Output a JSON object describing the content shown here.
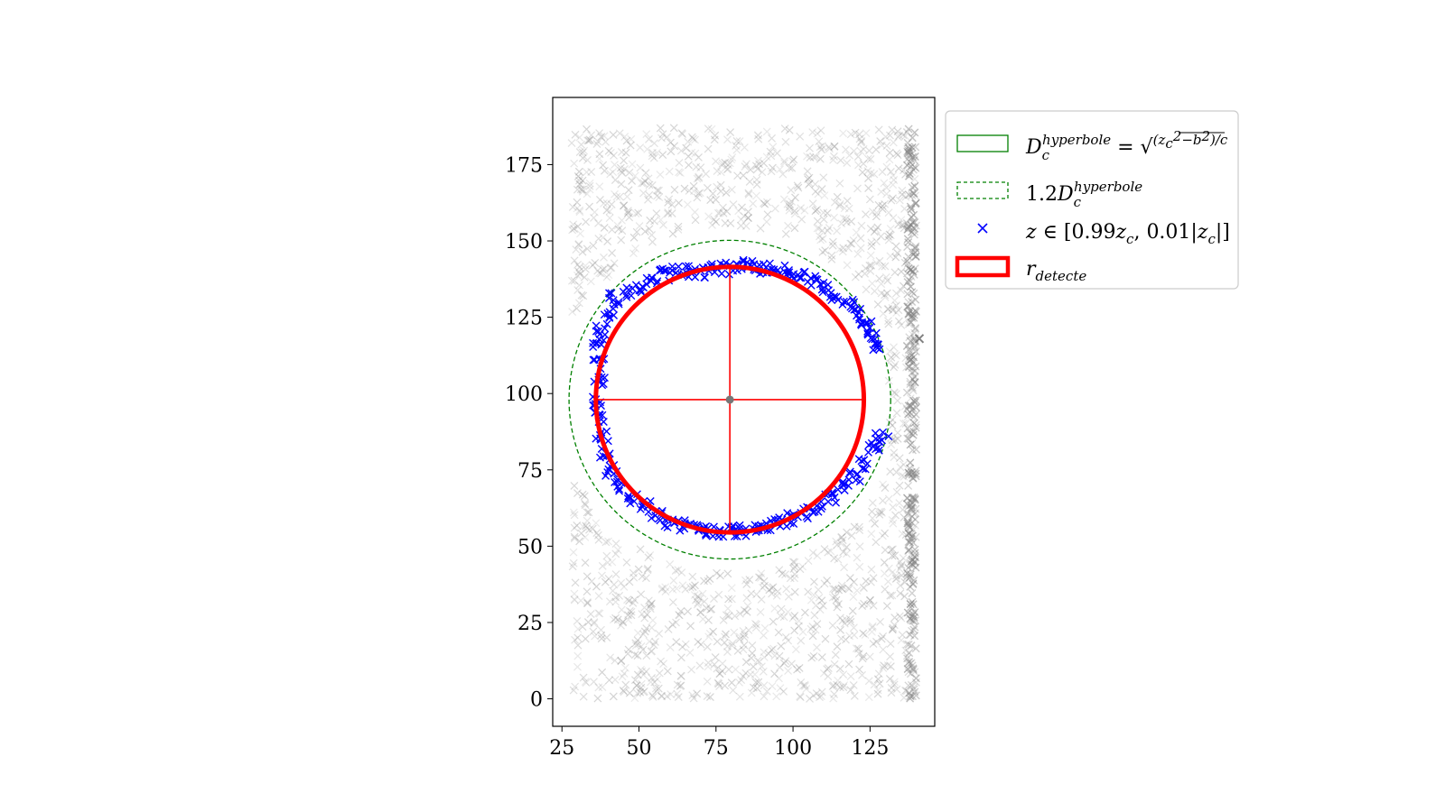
{
  "chart_data": {
    "type": "scatter",
    "title": "",
    "xlabel": "",
    "ylabel": "",
    "xlim": [
      22,
      146
    ],
    "ylim": [
      -9,
      197
    ],
    "xticks": [
      25,
      50,
      75,
      100,
      125
    ],
    "yticks": [
      0,
      25,
      50,
      75,
      100,
      125,
      150,
      175
    ],
    "grid": false,
    "legend_position": "outside-right-top",
    "aspect": "equal",
    "center": [
      79.5,
      98.0
    ],
    "detected_radius": 43.5,
    "hyperbola_radius": 43.5,
    "hyperbola_radius_factor_dashed": 1.2,
    "colors": {
      "background_points": "#808080",
      "selected_points": "#0000ff",
      "detected_circle": "#ff0000",
      "hyperbola_circle": "#008000"
    },
    "series": [
      {
        "name": "D_c^hyperbole = sqrt((z_c^2 - b^2)/c)",
        "kind": "circle-solid",
        "center": [
          79.5,
          98.0
        ],
        "radius": 43.5
      },
      {
        "name": "1.2 D_c^hyperbole",
        "kind": "circle-dashed",
        "center": [
          79.5,
          98.0
        ],
        "radius": 52.2
      },
      {
        "name": "z ∈ [0.99z_c, 0.01|z_c|]",
        "kind": "scatter-x",
        "arc_points": [
          [
            42,
            131
          ],
          [
            46,
            133
          ],
          [
            50,
            135
          ],
          [
            54,
            137
          ],
          [
            58,
            139
          ],
          [
            62,
            140
          ],
          [
            66,
            140
          ],
          [
            70,
            140
          ],
          [
            74,
            141
          ],
          [
            78,
            141
          ],
          [
            82,
            142
          ],
          [
            86,
            142
          ],
          [
            90,
            141
          ],
          [
            94,
            141
          ],
          [
            98,
            140
          ],
          [
            102,
            139
          ],
          [
            106,
            137
          ],
          [
            110,
            135
          ],
          [
            114,
            132
          ],
          [
            118,
            129
          ],
          [
            121,
            126
          ],
          [
            124,
            123
          ],
          [
            126,
            119
          ],
          [
            128,
            116
          ],
          [
            40,
            126
          ],
          [
            38,
            121
          ],
          [
            37,
            116
          ],
          [
            37,
            110
          ],
          [
            37,
            104
          ],
          [
            37,
            98
          ],
          [
            37,
            92
          ],
          [
            38,
            86
          ],
          [
            39,
            80
          ],
          [
            41,
            75
          ],
          [
            44,
            70
          ],
          [
            48,
            66
          ],
          [
            52,
            63
          ],
          [
            56,
            60
          ],
          [
            60,
            58
          ],
          [
            64,
            57
          ],
          [
            68,
            56
          ],
          [
            72,
            55
          ],
          [
            76,
            55
          ],
          [
            80,
            55
          ],
          [
            84,
            55
          ],
          [
            88,
            56
          ],
          [
            92,
            57
          ],
          [
            96,
            58
          ],
          [
            100,
            59
          ],
          [
            104,
            61
          ],
          [
            108,
            63
          ],
          [
            112,
            66
          ],
          [
            116,
            69
          ],
          [
            120,
            73
          ],
          [
            123,
            77
          ],
          [
            126,
            82
          ],
          [
            128,
            86
          ]
        ]
      },
      {
        "name": "r_detecte",
        "kind": "circle-thick",
        "center": [
          79.5,
          98.0
        ],
        "radius": 43.5
      }
    ],
    "background_region": {
      "x_range": [
        28,
        140
      ],
      "y_range": [
        0,
        187
      ],
      "description": "dense grey x markers everywhere except inside a circular hole around the center"
    }
  }
}
